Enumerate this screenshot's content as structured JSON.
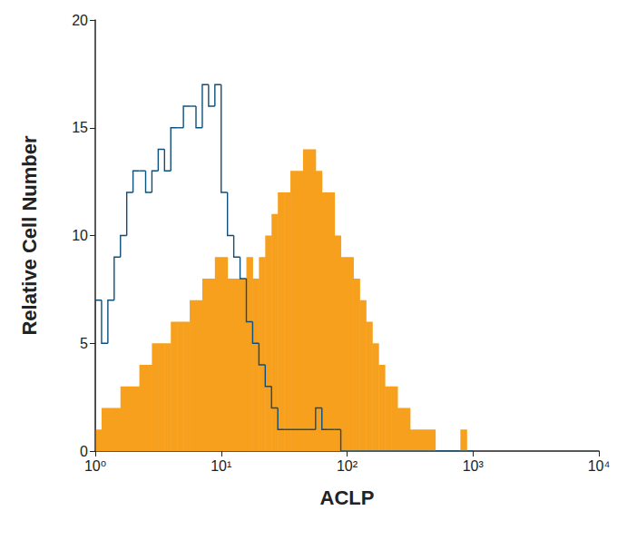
{
  "chart_data": {
    "type": "histogram",
    "x_label": "ACLP",
    "y_label": "Relative Cell Number",
    "log": "x",
    "grid": false,
    "xlim": [
      1,
      10000
    ],
    "xticks": [
      {
        "value": 1,
        "label": "10⁰"
      },
      {
        "value": 10,
        "label": "10¹"
      },
      {
        "value": 100,
        "label": "10²"
      },
      {
        "value": 1000,
        "label": "10³"
      },
      {
        "value": 10000,
        "label": "10⁴"
      }
    ],
    "ylim": [
      0,
      20
    ],
    "yticks": [
      0,
      5,
      10,
      15,
      20
    ],
    "bins": [
      1,
      1.122,
      1.259,
      1.413,
      1.585,
      1.778,
      1.995,
      2.239,
      2.512,
      2.818,
      3.162,
      3.548,
      3.981,
      4.467,
      5.012,
      5.623,
      6.31,
      7.079,
      7.943,
      8.913,
      10,
      11.22,
      12.59,
      14.13,
      15.85,
      17.78,
      19.95,
      22.39,
      25.12,
      28.18,
      31.62,
      35.48,
      39.81,
      44.67,
      50.12,
      56.23,
      63.1,
      70.79,
      79.43,
      89.13,
      100,
      112.2,
      125.9,
      141.3,
      158.5,
      177.8,
      199.5,
      223.9,
      251.2,
      281.8,
      316.2,
      354.8,
      398.1,
      446.7,
      501.2,
      562.3,
      631,
      707.9,
      794.3,
      891.3,
      1000
    ],
    "series": [
      {
        "type": "bar",
        "color": "#f6a01e",
        "values": [
          1,
          2,
          2,
          2,
          3,
          3,
          3,
          4,
          4,
          5,
          5,
          5,
          6,
          6,
          6,
          7,
          7,
          8,
          8,
          9,
          9,
          8,
          8,
          8,
          9,
          8,
          9,
          10,
          11,
          12,
          12,
          13,
          13,
          14,
          14,
          13,
          12,
          12,
          10,
          9,
          9,
          8,
          7,
          6,
          5,
          4,
          3,
          3,
          2,
          2,
          1,
          1,
          1,
          1,
          0,
          0,
          0,
          0,
          1,
          0
        ]
      },
      {
        "type": "step",
        "color": "#0d4f7c",
        "values": [
          7,
          5,
          7,
          9,
          10,
          12,
          13,
          13,
          12,
          13,
          14,
          13,
          15,
          15,
          16,
          16,
          15,
          17,
          16,
          17,
          12,
          10,
          9,
          8,
          6,
          5,
          4,
          3,
          2,
          1,
          1,
          1,
          1,
          1,
          1,
          2,
          1,
          1,
          1,
          0,
          0,
          0,
          0,
          0,
          0,
          0,
          0,
          0,
          0,
          0,
          0,
          0,
          0,
          0,
          0,
          0,
          0,
          0,
          0,
          0
        ]
      }
    ]
  }
}
